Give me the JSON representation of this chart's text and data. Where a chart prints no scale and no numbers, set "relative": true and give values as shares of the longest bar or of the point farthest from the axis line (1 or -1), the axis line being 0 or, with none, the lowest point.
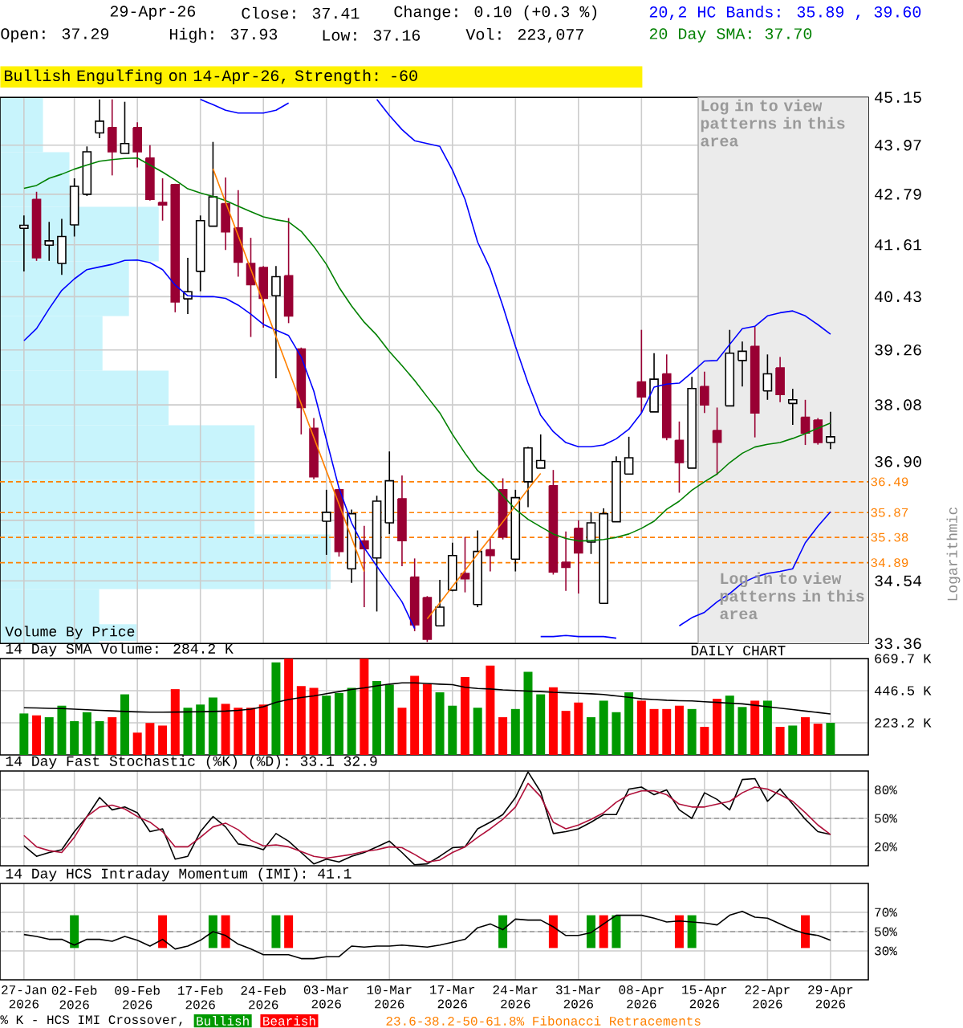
{
  "chart_data": [
    {
      "type": "candlestick",
      "title": "Bullish Engulfing on 14-Apr-26, Strength: -60",
      "ylabel": "Logarithmic",
      "categories": [
        "27-Jan 2026",
        null,
        null,
        null,
        "02-Feb 2026",
        null,
        null,
        null,
        null,
        "09-Feb 2026",
        null,
        null,
        null,
        null,
        "17-Feb 2026",
        null,
        null,
        null,
        null,
        "24-Feb 2026",
        null,
        null,
        null,
        null,
        "03-Mar 2026",
        null,
        null,
        null,
        null,
        "10-Mar 2026",
        null,
        null,
        null,
        null,
        "17-Mar 2026",
        null,
        null,
        null,
        null,
        "24-Mar 2026",
        null,
        null,
        null,
        null,
        "31-Mar 2026",
        null,
        null,
        null,
        null,
        "08-Apr 2026",
        null,
        null,
        null,
        null,
        "15-Apr 2026",
        null,
        null,
        null,
        null,
        "22-Apr 2026",
        null,
        null,
        null,
        null,
        "29-Apr 2026"
      ],
      "ohlc": [
        [
          41.99,
          42.29,
          41.0,
          42.06
        ],
        [
          42.67,
          42.85,
          41.24,
          41.31
        ],
        [
          41.6,
          42.14,
          41.24,
          41.7
        ],
        [
          41.18,
          42.21,
          40.92,
          41.8
        ],
        [
          42.07,
          43.17,
          41.8,
          42.98
        ],
        [
          42.79,
          43.94,
          42.75,
          43.81
        ],
        [
          44.27,
          45.1,
          44.14,
          44.56
        ],
        [
          44.4,
          45.1,
          43.24,
          43.81
        ],
        [
          43.77,
          45.04,
          43.77,
          44.01
        ],
        [
          44.4,
          44.53,
          43.43,
          43.81
        ],
        [
          43.66,
          43.97,
          42.64,
          42.67
        ],
        [
          42.6,
          43.17,
          42.17,
          42.54
        ],
        [
          43.02,
          43.04,
          40.08,
          40.31
        ],
        [
          40.38,
          41.31,
          40.04,
          40.54
        ],
        [
          41.0,
          42.29,
          40.55,
          42.17
        ],
        [
          42.04,
          44.05,
          42.04,
          42.73
        ],
        [
          42.57,
          43.19,
          41.49,
          41.91
        ],
        [
          42.0,
          42.89,
          40.88,
          41.21
        ],
        [
          41.18,
          41.77,
          39.54,
          40.7
        ],
        [
          41.09,
          41.12,
          39.75,
          40.39
        ],
        [
          40.45,
          41.12,
          38.65,
          40.88
        ],
        [
          40.9,
          42.23,
          39.85,
          40.0
        ],
        [
          39.28,
          39.31,
          37.46,
          38.02
        ],
        [
          37.59,
          37.8,
          36.54,
          36.59
        ],
        [
          35.7,
          36.33,
          35.04,
          35.88
        ],
        [
          36.33,
          36.35,
          35.01,
          35.11
        ],
        [
          34.77,
          35.93,
          34.5,
          35.85
        ],
        [
          35.31,
          35.61,
          34.04,
          35.16
        ],
        [
          34.98,
          36.21,
          33.96,
          36.1
        ],
        [
          35.67,
          37.11,
          35.45,
          36.51
        ],
        [
          36.15,
          36.62,
          34.82,
          35.32
        ],
        [
          34.61,
          34.97,
          33.59,
          33.71
        ],
        [
          34.22,
          34.25,
          33.39,
          33.44
        ],
        [
          33.69,
          34.56,
          33.69,
          34.04
        ],
        [
          34.36,
          35.28,
          34.34,
          35.03
        ],
        [
          34.68,
          35.39,
          34.32,
          34.58
        ],
        [
          34.09,
          35.52,
          34.04,
          35.11
        ],
        [
          35.14,
          35.36,
          34.72,
          35.03
        ],
        [
          36.33,
          36.56,
          35.34,
          35.39
        ],
        [
          34.96,
          36.33,
          34.72,
          36.17
        ],
        [
          36.49,
          37.21,
          35.98,
          37.18
        ],
        [
          36.77,
          37.46,
          36.77,
          36.92
        ],
        [
          36.41,
          36.73,
          34.66,
          34.71
        ],
        [
          34.9,
          35.5,
          34.35,
          34.8
        ],
        [
          35.56,
          35.72,
          34.3,
          35.08
        ],
        [
          35.29,
          35.88,
          35.06,
          35.67
        ],
        [
          34.11,
          35.96,
          34.11,
          35.85
        ],
        [
          35.69,
          37.01,
          35.69,
          36.9
        ],
        [
          36.65,
          37.41,
          36.65,
          36.98
        ],
        [
          38.57,
          39.7,
          37.91,
          38.25
        ],
        [
          37.93,
          39.19,
          37.93,
          38.63
        ],
        [
          38.74,
          39.16,
          37.34,
          37.4
        ],
        [
          37.34,
          37.73,
          36.27,
          36.88
        ],
        [
          36.77,
          38.68,
          36.77,
          38.43
        ],
        [
          38.47,
          38.79,
          37.91,
          38.08
        ],
        [
          37.54,
          38.02,
          36.63,
          37.3
        ],
        [
          38.06,
          39.7,
          38.06,
          39.19
        ],
        [
          39.03,
          39.44,
          38.47,
          39.23
        ],
        [
          39.34,
          39.76,
          37.4,
          37.91
        ],
        [
          38.38,
          39.16,
          38.19,
          38.74
        ],
        [
          38.87,
          39.1,
          38.14,
          38.3
        ],
        [
          38.11,
          38.42,
          37.66,
          38.19
        ],
        [
          37.82,
          38.19,
          37.24,
          37.49
        ],
        [
          37.76,
          37.8,
          37.25,
          37.29
        ],
        [
          37.29,
          37.93,
          37.16,
          37.41
        ]
      ],
      "colors": [
        "#ffffff",
        "#990033",
        "#ffffff",
        "#ffffff",
        "#ffffff",
        "#ffffff",
        "#ffffff",
        "#990033",
        "#ffffff",
        "#990033",
        "#990033",
        "#990033",
        "#990033",
        "#ffffff",
        "#ffffff",
        "#ffffff",
        "#990033",
        "#990033",
        "#990033",
        "#990033",
        "#ffffff",
        "#990033",
        "#990033",
        "#990033",
        "#ffffff",
        "#990033",
        "#ffffff",
        "#990033",
        "#ffffff",
        "#ffffff",
        "#990033",
        "#990033",
        "#990033",
        "#ffffff",
        "#ffffff",
        "#990033",
        "#ffffff",
        "#990033",
        "#990033",
        "#ffffff",
        "#ffffff",
        "#ffffff",
        "#990033",
        "#990033",
        "#990033",
        "#ffffff",
        "#ffffff",
        "#ffffff",
        "#ffffff",
        "#990033",
        "#ffffff",
        "#990033",
        "#990033",
        "#ffffff",
        "#990033",
        "#990033",
        "#ffffff",
        "#ffffff",
        "#990033",
        "#ffffff",
        "#990033",
        "#ffffff",
        "#990033",
        "#990033",
        "#ffffff"
      ],
      "series": [
        {
          "type": "line",
          "color": "#0000ff",
          "values": [
            null,
            null,
            null,
            null,
            null,
            null,
            null,
            null,
            null,
            null,
            null,
            null,
            null,
            null,
            45.1,
            44.97,
            44.83,
            44.76,
            44.76,
            44.76,
            44.83,
            45.01,
            null,
            null,
            null,
            null,
            null,
            null,
            45.1,
            44.7,
            44.35,
            44.08,
            44.01,
            43.94,
            43.37,
            42.67,
            41.67,
            41.06,
            40.22,
            39.34,
            38.54,
            37.86,
            37.52,
            37.29,
            37.21,
            37.21,
            37.24,
            37.37,
            37.57,
            37.91,
            38.46,
            38.52,
            38.54,
            38.77,
            39.02,
            39.03,
            39.38,
            39.72,
            39.78,
            40.0,
            40.07,
            40.11,
            40.0,
            39.81,
            39.6
          ]
        },
        {
          "type": "line",
          "color": "#008000",
          "values": [
            42.93,
            43.0,
            43.17,
            43.27,
            43.39,
            43.49,
            43.58,
            43.62,
            43.65,
            43.66,
            43.49,
            43.32,
            43.13,
            42.92,
            42.82,
            42.74,
            42.64,
            42.51,
            42.38,
            42.26,
            42.19,
            42.14,
            41.92,
            41.57,
            41.16,
            40.64,
            40.22,
            39.87,
            39.58,
            39.22,
            38.92,
            38.6,
            38.25,
            37.91,
            37.46,
            37.07,
            36.72,
            36.5,
            36.21,
            35.94,
            35.74,
            35.59,
            35.45,
            35.36,
            35.31,
            35.32,
            35.34,
            35.38,
            35.45,
            35.56,
            35.7,
            35.94,
            36.1,
            36.32,
            36.49,
            36.65,
            36.88,
            37.07,
            37.2,
            37.26,
            37.29,
            37.38,
            37.48,
            37.59,
            37.7
          ]
        },
        {
          "type": "line",
          "color": "#0000ff",
          "values": [
            39.46,
            39.73,
            40.16,
            40.57,
            40.83,
            41.04,
            41.1,
            41.16,
            41.25,
            41.26,
            41.2,
            41.04,
            40.69,
            40.45,
            40.43,
            40.43,
            40.39,
            40.24,
            40.04,
            39.82,
            39.69,
            39.57,
            39.11,
            38.37,
            37.35,
            36.36,
            35.67,
            35.18,
            34.82,
            34.48,
            34.14,
            33.64,
            null,
            null,
            null,
            null,
            null,
            null,
            null,
            null,
            null,
            33.49,
            33.49,
            33.51,
            33.49,
            33.49,
            33.49,
            33.46,
            null,
            null,
            null,
            null,
            33.69,
            33.84,
            33.94,
            34.14,
            34.3,
            34.5,
            34.61,
            34.68,
            34.72,
            34.77,
            35.28,
            35.6,
            35.89
          ]
        },
        {
          "type": "line",
          "color": "#ff8000",
          "values": [
            null,
            null,
            null,
            null,
            null,
            null,
            null,
            null,
            null,
            null,
            null,
            null,
            null,
            null,
            null,
            43.4,
            42.6,
            41.82,
            41.05,
            40.29,
            39.55,
            38.82,
            38.1,
            37.4,
            36.71,
            36.04,
            35.37,
            34.72,
            null,
            null,
            null,
            null,
            33.82,
            34.12,
            34.43,
            34.74,
            35.06,
            35.37,
            35.69,
            36.01,
            36.34,
            36.66,
            null,
            null,
            null,
            null,
            null,
            null,
            null,
            null,
            null,
            null,
            null,
            null,
            null,
            null,
            null,
            null,
            null,
            null,
            null,
            null,
            null,
            null,
            null
          ]
        }
      ],
      "log": true,
      "ylim": [
        33.36,
        45.15
      ],
      "yticks": [
        45.15,
        43.97,
        42.79,
        41.61,
        40.43,
        39.26,
        38.08,
        {
          "value": 36.9,
          "label": "36.90"
        },
        {
          "value": 35.72,
          "label": null
        },
        34.54,
        33.36
      ],
      "grid": true,
      "tick_labels": "y",
      "ref_lines": [
        {
          "axis": "y",
          "value": 36.49,
          "label": "36.49",
          "color": "#ff8000",
          "line_style": "dashed"
        },
        {
          "axis": "y",
          "value": 35.87,
          "label": "35.87",
          "color": "#ff8000",
          "line_style": "dashed"
        },
        {
          "axis": "y",
          "value": 35.38,
          "label": "35.38",
          "color": "#ff8000",
          "line_style": "dashed"
        },
        {
          "axis": "y",
          "value": 34.89,
          "label": "34.89",
          "color": "#ff8000",
          "line_style": "dashed"
        }
      ],
      "bands": [
        {
          "axis": "x",
          "from": "15-Apr 2026",
          "to": "29-Apr 2026",
          "label": "Log in to view patterns in this area",
          "color": "#ebebeb"
        }
      ],
      "annotations": [
        "29-Apr-26",
        "Close: 37.41",
        "Change: 0.10 (+0.3 %)",
        "Open: 37.29",
        "High: 37.93",
        "Low: 37.16",
        "Vol: 223,077",
        "20,2 HC Bands: 35.89 , 39.60",
        "20 Day SMA: 37.70",
        "DAILY CHART",
        "Log in to view patterns in this area"
      ]
    },
    {
      "type": "bar",
      "orientation": "horizontal",
      "relative": true,
      "title": "Volume By Price",
      "color": "#c8f4fc",
      "categories": [
        null,
        null,
        null,
        null,
        null,
        null,
        null,
        null,
        null,
        null
      ],
      "values": [
        0.13,
        0.21,
        0.48,
        0.39,
        0.31,
        0.51,
        0.77,
        0.77,
        1,
        0.3
      ]
    },
    {
      "type": "bar",
      "title": "14 Day SMA Volume: 284.2 K",
      "categories": [
        "27-Jan 2026",
        null,
        null,
        null,
        "02-Feb 2026",
        null,
        null,
        null,
        null,
        "09-Feb 2026",
        null,
        null,
        null,
        null,
        "17-Feb 2026",
        null,
        null,
        null,
        null,
        "24-Feb 2026",
        null,
        null,
        null,
        null,
        "03-Mar 2026",
        null,
        null,
        null,
        null,
        "10-Mar 2026",
        null,
        null,
        null,
        null,
        "17-Mar 2026",
        null,
        null,
        null,
        null,
        "24-Mar 2026",
        null,
        null,
        null,
        null,
        "31-Mar 2026",
        null,
        null,
        null,
        null,
        "08-Apr 2026",
        null,
        null,
        null,
        null,
        "15-Apr 2026",
        null,
        null,
        null,
        null,
        "22-Apr 2026",
        null,
        null,
        null,
        null,
        "29-Apr 2026"
      ],
      "series": [
        {
          "type": "bar",
          "values": [
            288,
            275,
            262,
            342,
            235,
            297,
            235,
            262,
            421,
            155,
            222,
            204,
            457,
            328,
            350,
            399,
            355,
            328,
            328,
            350,
            643,
            669,
            479,
            466,
            412,
            430,
            466,
            669,
            514,
            488,
            328,
            550,
            492,
            435,
            342,
            541,
            328,
            621,
            262,
            319,
            577,
            421,
            470,
            306,
            364,
            262,
            377,
            297,
            435,
            377,
            319,
            319,
            342,
            319,
            195,
            390,
            412,
            333,
            377,
            377,
            195,
            204,
            262,
            217,
            223.1
          ],
          "colors": [
            "#009900",
            "#ff0000",
            "#009900",
            "#009900",
            "#009900",
            "#009900",
            "#009900",
            "#ff0000",
            "#009900",
            "#ff0000",
            "#ff0000",
            "#ff0000",
            "#ff0000",
            "#009900",
            "#009900",
            "#009900",
            "#ff0000",
            "#ff0000",
            "#ff0000",
            "#ff0000",
            "#009900",
            "#ff0000",
            "#ff0000",
            "#ff0000",
            "#009900",
            "#009900",
            "#009900",
            "#ff0000",
            "#009900",
            "#009900",
            "#ff0000",
            "#ff0000",
            "#ff0000",
            "#009900",
            "#009900",
            "#ff0000",
            "#009900",
            "#ff0000",
            "#ff0000",
            "#009900",
            "#009900",
            "#009900",
            "#ff0000",
            "#ff0000",
            "#ff0000",
            "#009900",
            "#009900",
            "#009900",
            "#009900",
            "#ff0000",
            "#ff0000",
            "#ff0000",
            "#ff0000",
            "#009900",
            "#ff0000",
            "#ff0000",
            "#009900",
            "#009900",
            "#ff0000",
            "#009900",
            "#ff0000",
            "#009900",
            "#ff0000",
            "#ff0000",
            "#009900"
          ]
        },
        {
          "type": "line",
          "color": "#000000",
          "values": [
            328,
            326,
            324,
            322,
            318,
            314,
            310,
            306,
            302,
            299,
            297,
            297,
            298,
            299,
            300,
            302,
            305,
            310,
            318,
            335,
            365,
            385,
            399,
            410,
            425,
            440,
            455,
            466,
            480,
            492,
            501,
            501,
            497,
            492,
            488,
            470,
            462,
            458,
            452,
            448,
            444,
            440,
            435,
            432,
            428,
            425,
            420,
            410,
            400,
            390,
            385,
            380,
            377,
            375,
            370,
            365,
            360,
            355,
            345,
            335,
            325,
            315,
            305,
            295,
            284.2
          ]
        }
      ],
      "ylim": [
        0,
        669.7
      ],
      "yticks": [
        {
          "value": 669.7,
          "label": "669.7 K"
        },
        {
          "value": 446.5,
          "label": "446.5 K"
        },
        {
          "value": 223.2,
          "label": "223.2 K"
        }
      ],
      "grid": true,
      "tick_labels": "y"
    },
    {
      "type": "line",
      "title": "14 Day Fast Stochastic (%K) (%D): 33.1 32.9",
      "categories": [
        "27-Jan 2026",
        null,
        null,
        null,
        "02-Feb 2026",
        null,
        null,
        null,
        null,
        "09-Feb 2026",
        null,
        null,
        null,
        null,
        "17-Feb 2026",
        null,
        null,
        null,
        null,
        "24-Feb 2026",
        null,
        null,
        null,
        null,
        "03-Mar 2026",
        null,
        null,
        null,
        null,
        "10-Mar 2026",
        null,
        null,
        null,
        null,
        "17-Mar 2026",
        null,
        null,
        null,
        null,
        "24-Mar 2026",
        null,
        null,
        null,
        null,
        "31-Mar 2026",
        null,
        null,
        null,
        null,
        "08-Apr 2026",
        null,
        null,
        null,
        null,
        "15-Apr 2026",
        null,
        null,
        null,
        null,
        "22-Apr 2026",
        null,
        null,
        null,
        null,
        "29-Apr 2026"
      ],
      "series": [
        {
          "color": "#000000",
          "values": [
            21,
            10,
            14,
            17,
            36,
            52,
            72,
            59,
            62,
            56,
            36,
            39,
            7,
            10,
            36,
            52,
            41,
            23,
            21,
            17,
            34,
            26,
            14,
            2,
            7,
            4,
            10,
            14,
            20,
            26,
            14,
            1,
            2,
            10,
            19,
            20,
            39,
            46,
            54,
            72,
            99,
            78,
            34,
            36,
            39,
            46,
            54,
            54,
            81,
            83,
            75,
            80,
            59,
            50,
            77,
            70,
            59,
            91,
            92,
            68,
            81,
            65,
            49,
            36,
            33.1
          ]
        },
        {
          "color": "#b0103a",
          "values": [
            32,
            20,
            16,
            14,
            30,
            52,
            62,
            64,
            60,
            52,
            46,
            36,
            20,
            20,
            30,
            41,
            45,
            38,
            27,
            21,
            22,
            20,
            15,
            10,
            8,
            10,
            12,
            15,
            17,
            20,
            19,
            12,
            4,
            6,
            14,
            20,
            30,
            39,
            49,
            62,
            87,
            73,
            46,
            39,
            43,
            49,
            56,
            67,
            75,
            79,
            79,
            75,
            65,
            62,
            62,
            65,
            68,
            77,
            83,
            81,
            75,
            68,
            56,
            43,
            32.9
          ]
        }
      ],
      "ylim": [
        0,
        100
      ],
      "yticks": [
        {
          "value": 80,
          "label": "80%"
        },
        {
          "value": 50,
          "label": "50%"
        },
        {
          "value": 20,
          "label": "20%"
        }
      ],
      "ref_lines": [
        {
          "axis": "y",
          "value": 50,
          "color": "#999999",
          "line_style": "dashed"
        }
      ],
      "grid": true,
      "tick_labels": "y"
    },
    {
      "type": "line",
      "title": "14 Day HCS Intraday Momentum (IMI): 41.1",
      "categories": [
        "27-Jan 2026",
        null,
        null,
        null,
        "02-Feb 2026",
        null,
        null,
        null,
        null,
        "09-Feb 2026",
        null,
        null,
        null,
        null,
        "17-Feb 2026",
        null,
        null,
        null,
        null,
        "24-Feb 2026",
        null,
        null,
        null,
        null,
        "03-Mar 2026",
        null,
        null,
        null,
        null,
        "10-Mar 2026",
        null,
        null,
        null,
        null,
        "17-Mar 2026",
        null,
        null,
        null,
        null,
        "24-Mar 2026",
        null,
        null,
        null,
        null,
        "31-Mar 2026",
        null,
        null,
        null,
        null,
        "08-Apr 2026",
        null,
        null,
        null,
        null,
        "15-Apr 2026",
        null,
        null,
        null,
        null,
        "22-Apr 2026",
        null,
        null,
        null,
        null,
        "29-Apr 2026"
      ],
      "series": [
        {
          "name": "Bullish",
          "type": "bar",
          "color": "#009900",
          "values": [
            null,
            null,
            null,
            null,
            34,
            null,
            null,
            null,
            null,
            null,
            null,
            null,
            null,
            null,
            null,
            34,
            null,
            null,
            null,
            null,
            34,
            null,
            null,
            null,
            null,
            null,
            null,
            null,
            null,
            null,
            null,
            null,
            null,
            null,
            null,
            null,
            null,
            null,
            34,
            null,
            null,
            null,
            null,
            null,
            null,
            34,
            null,
            34,
            null,
            null,
            null,
            null,
            null,
            34,
            null,
            null,
            null,
            null,
            null,
            null,
            null,
            null,
            null,
            null,
            null
          ],
          "base": [
            null,
            null,
            null,
            null,
            33,
            null,
            null,
            null,
            null,
            null,
            null,
            null,
            null,
            null,
            null,
            33,
            null,
            null,
            null,
            null,
            33,
            null,
            null,
            null,
            null,
            null,
            null,
            null,
            null,
            null,
            null,
            null,
            null,
            null,
            null,
            null,
            null,
            null,
            33,
            null,
            null,
            null,
            null,
            null,
            null,
            33,
            null,
            33,
            null,
            null,
            null,
            null,
            null,
            33,
            null,
            null,
            null,
            null,
            null,
            null,
            null,
            null,
            null,
            null,
            null
          ]
        },
        {
          "name": "Bearish",
          "type": "bar",
          "color": "#ff0000",
          "values": [
            null,
            null,
            null,
            null,
            null,
            null,
            null,
            null,
            null,
            null,
            null,
            34,
            null,
            null,
            null,
            null,
            34,
            null,
            null,
            null,
            null,
            34,
            null,
            null,
            null,
            null,
            null,
            null,
            null,
            null,
            null,
            null,
            null,
            null,
            null,
            null,
            null,
            null,
            null,
            null,
            null,
            null,
            34,
            null,
            null,
            null,
            34,
            null,
            null,
            null,
            null,
            null,
            34,
            null,
            null,
            null,
            null,
            null,
            null,
            null,
            null,
            null,
            34,
            null,
            null
          ],
          "base": [
            null,
            null,
            null,
            null,
            null,
            null,
            null,
            null,
            null,
            null,
            null,
            33,
            null,
            null,
            null,
            null,
            33,
            null,
            null,
            null,
            null,
            33,
            null,
            null,
            null,
            null,
            null,
            null,
            null,
            null,
            null,
            null,
            null,
            null,
            null,
            null,
            null,
            null,
            null,
            null,
            null,
            null,
            33,
            null,
            null,
            null,
            33,
            null,
            null,
            null,
            null,
            null,
            33,
            null,
            null,
            null,
            null,
            null,
            null,
            null,
            null,
            null,
            33,
            null,
            null
          ]
        },
        {
          "type": "line",
          "color": "#000000",
          "values": [
            47,
            45,
            42,
            42,
            36,
            42,
            42,
            40,
            45,
            41,
            35,
            42,
            32,
            35,
            41,
            50,
            46,
            37,
            32,
            26,
            26,
            26,
            22,
            22,
            24,
            24,
            35,
            34,
            35,
            35,
            36,
            35,
            34,
            36,
            39,
            42,
            54,
            58,
            52,
            63,
            62,
            62,
            55,
            46,
            46,
            49,
            58,
            67,
            67,
            67,
            64,
            60,
            61,
            60,
            59,
            57,
            67,
            71,
            65,
            64,
            58,
            52,
            48,
            46,
            41.1
          ]
        }
      ],
      "ylim": [
        0,
        100
      ],
      "yticks": [
        {
          "value": 70,
          "label": "70%"
        },
        {
          "value": 50,
          "label": "50%"
        },
        {
          "value": 30,
          "label": "30%"
        }
      ],
      "ref_lines": [
        {
          "axis": "y",
          "value": 50,
          "color": "#999999",
          "line_style": "dashed"
        }
      ],
      "grid": true,
      "legend": "bottom",
      "legend_title": "% K - HCS IMI Crossover,",
      "annotations": [
        "23.6-38.2-50-61.8% Fibonacci Retracements"
      ]
    }
  ]
}
